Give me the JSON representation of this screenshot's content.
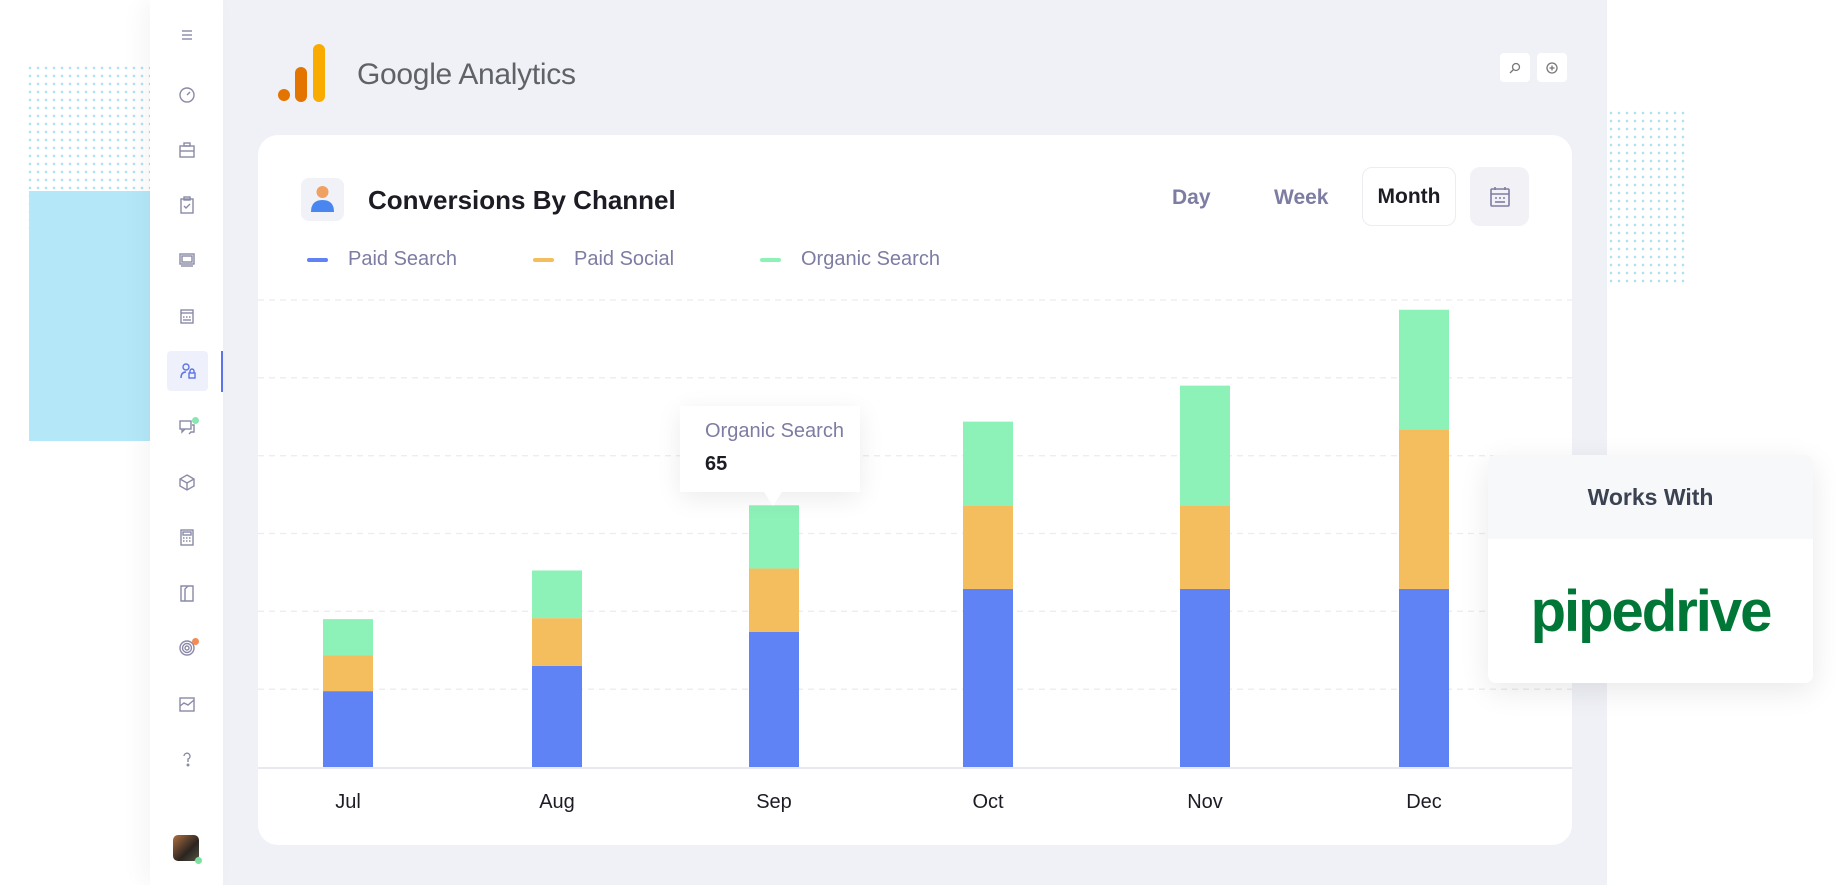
{
  "app": {
    "brand": "Google Analytics",
    "logo_colors": [
      "#e37400",
      "#f9ab00"
    ]
  },
  "sidebar": {
    "items": [
      {
        "icon": "menu-icon"
      },
      {
        "icon": "dashboard-icon"
      },
      {
        "icon": "briefcase-icon"
      },
      {
        "icon": "clipboard-icon"
      },
      {
        "icon": "media-icon"
      },
      {
        "icon": "calendar-icon"
      },
      {
        "icon": "user-lock-icon",
        "active": true
      },
      {
        "icon": "chat-icon",
        "badge": "#86e8b0"
      },
      {
        "icon": "box-icon"
      },
      {
        "icon": "calculator-icon"
      },
      {
        "icon": "book-icon"
      },
      {
        "icon": "target-icon",
        "badge": "#f08c55"
      },
      {
        "icon": "chart-area-icon"
      },
      {
        "icon": "help-icon"
      }
    ],
    "avatar_status": "#7ee0a0"
  },
  "toolbar": {
    "search_icon": "search-icon",
    "add_icon": "add-circle-icon"
  },
  "card": {
    "title": "Conversions By Channel",
    "periods": {
      "day": "Day",
      "week": "Week",
      "month": "Month",
      "selected": "Month"
    },
    "calendar_icon": "calendar-icon"
  },
  "chart_data": {
    "type": "bar",
    "stacked": true,
    "categories": [
      "Jul",
      "Aug",
      "Sep",
      "Oct",
      "Nov",
      "Dec"
    ],
    "series": [
      {
        "name": "Paid Search",
        "color": "#5f82f5",
        "values": [
          78,
          104,
          139,
          183,
          183,
          183
        ]
      },
      {
        "name": "Paid Social",
        "color": "#f4be5e",
        "values": [
          37,
          49,
          65,
          86,
          86,
          164
        ]
      },
      {
        "name": "Organic Search",
        "color": "#8df2b8",
        "values": [
          37,
          49,
          65,
          86,
          123,
          123
        ]
      }
    ],
    "ylim": [
      0,
      480
    ],
    "grid": true,
    "legend": "top-left",
    "tooltip": {
      "series": "Organic Search",
      "category": "Sep",
      "value": "65"
    }
  },
  "integration": {
    "heading": "Works With",
    "partner": "pipedrive",
    "partner_color": "#017737"
  }
}
